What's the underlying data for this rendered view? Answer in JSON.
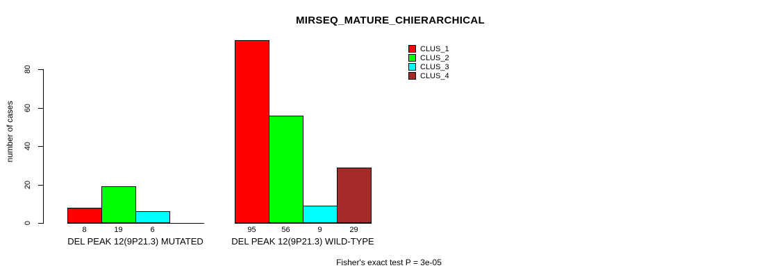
{
  "chart_data": {
    "type": "bar",
    "title": "MIRSEQ_MATURE_CHIERARCHICAL",
    "ylabel": "number of cases",
    "yticks": [
      0,
      20,
      40,
      60,
      80
    ],
    "ylim": [
      0,
      95
    ],
    "grid": false,
    "legend_position": "top-right",
    "categories": [
      "DEL PEAK 12(9P21.3) MUTATED",
      "DEL PEAK 12(9P21.3) WILD-TYPE"
    ],
    "series": [
      {
        "name": "CLUS_1",
        "color": "#FF0000",
        "values": [
          8,
          95
        ]
      },
      {
        "name": "CLUS_2",
        "color": "#00FF00",
        "values": [
          19,
          56
        ]
      },
      {
        "name": "CLUS_3",
        "color": "#00FFFF",
        "values": [
          6,
          9
        ]
      },
      {
        "name": "CLUS_4",
        "color": "#A52A2A",
        "values": [
          0,
          29
        ]
      }
    ],
    "bar_value_labels": [
      [
        "8",
        "19",
        "6",
        ""
      ],
      [
        "95",
        "56",
        "9",
        "29"
      ]
    ],
    "footnote": "Fisher's exact test P = 3e-05"
  }
}
